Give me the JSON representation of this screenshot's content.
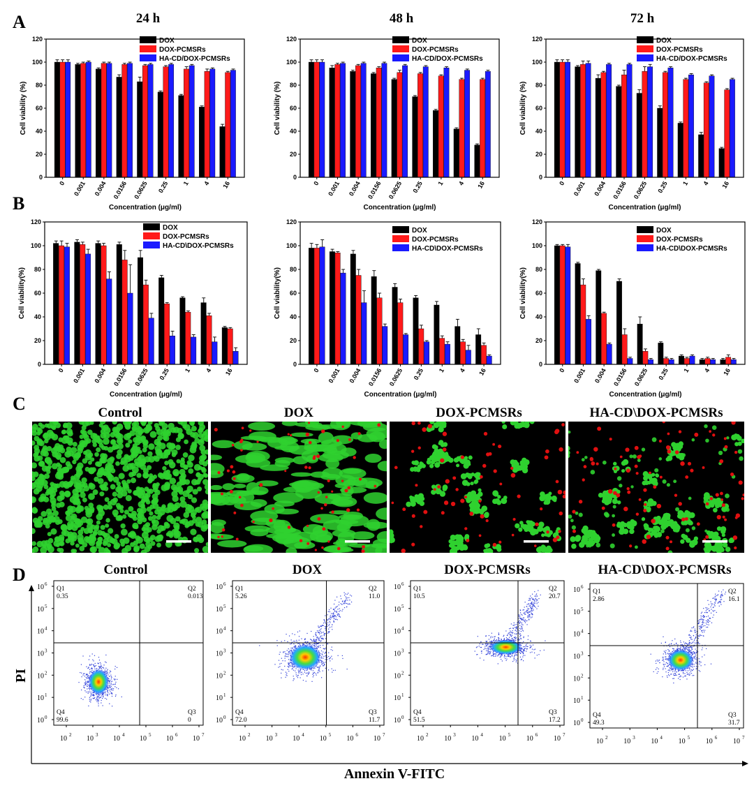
{
  "colors": {
    "DOX": "#000000",
    "DOX-PCMSRs": "#ff1a1a",
    "HA-CD/DOX-PCMSRs": "#1a1aff",
    "cell_green": "#2fd12f",
    "cell_red": "#e01010"
  },
  "panels": {
    "A": {
      "letter": "A",
      "times": [
        "24 h",
        "48 h",
        "72 h"
      ]
    },
    "B": {
      "letter": "B"
    },
    "C": {
      "letter": "C",
      "titles": [
        "Control",
        "DOX",
        "DOX-PCMSRs",
        "HA-CD\\DOX-PCMSRs"
      ]
    },
    "D": {
      "letter": "D",
      "titles": [
        "Control",
        "DOX",
        "DOX-PCMSRs",
        "HA-CD\\DOX-PCMSRs"
      ],
      "ylabel": "PI",
      "xlabel": "Annexin V-FITC"
    }
  },
  "chart_data": [
    {
      "id": "A-24h",
      "type": "bar",
      "title": "24 h",
      "xlabel": "Concentration (μg/ml)",
      "ylabel": "Cell viability (%)",
      "ylim": [
        0,
        120
      ],
      "yticks": [
        0,
        20,
        40,
        60,
        80,
        100,
        120
      ],
      "categories": [
        "0",
        "0.001",
        "0.004",
        "0.0156",
        "0.0625",
        "0.25",
        "1",
        "4",
        "16"
      ],
      "legend": "top-right",
      "series": [
        {
          "name": "DOX",
          "values": [
            100,
            98,
            94,
            87,
            83,
            74,
            71,
            61,
            44
          ],
          "errors": [
            2,
            1,
            1,
            2,
            4,
            1,
            1,
            1,
            2
          ]
        },
        {
          "name": "DOX-PCMSRs",
          "values": [
            100,
            99,
            99,
            98,
            97,
            96,
            94,
            92,
            91
          ],
          "errors": [
            2,
            1,
            1,
            1,
            1,
            1,
            2,
            2,
            1
          ]
        },
        {
          "name": "HA-CD/DOX-PCMSRs",
          "values": [
            100,
            100,
            99,
            99,
            98,
            98,
            97,
            94,
            93
          ],
          "errors": [
            2,
            1,
            1,
            1,
            1,
            1,
            1,
            1,
            1
          ]
        }
      ]
    },
    {
      "id": "A-48h",
      "type": "bar",
      "title": "48 h",
      "xlabel": "Concentration (μg/ml)",
      "ylabel": "Cell viability (%)",
      "ylim": [
        0,
        120
      ],
      "yticks": [
        0,
        20,
        40,
        60,
        80,
        100,
        120
      ],
      "categories": [
        "0",
        "0.001",
        "0.004",
        "0.0156",
        "0.0625",
        "0.25",
        "1",
        "4",
        "16"
      ],
      "legend": "top-right",
      "series": [
        {
          "name": "DOX",
          "values": [
            100,
            95,
            92,
            90,
            85,
            70,
            58,
            42,
            28
          ],
          "errors": [
            2,
            2,
            1,
            1,
            1,
            1,
            1,
            1,
            1
          ]
        },
        {
          "name": "DOX-PCMSRs",
          "values": [
            100,
            98,
            97,
            95,
            91,
            90,
            88,
            85,
            85
          ],
          "errors": [
            2,
            1,
            1,
            1,
            2,
            1,
            1,
            1,
            1
          ]
        },
        {
          "name": "HA-CD/DOX-PCMSRs",
          "values": [
            100,
            99,
            99,
            99,
            97,
            96,
            95,
            93,
            92
          ],
          "errors": [
            2,
            1,
            1,
            1,
            1,
            1,
            1,
            1,
            1
          ]
        }
      ]
    },
    {
      "id": "A-72h",
      "type": "bar",
      "title": "72 h",
      "xlabel": "Concentration (μg/ml)",
      "ylabel": "Cell viability (%)",
      "ylim": [
        0,
        120
      ],
      "yticks": [
        0,
        20,
        40,
        60,
        80,
        100,
        120
      ],
      "categories": [
        "0",
        "0.001",
        "0.004",
        "0.0156",
        "0.0625",
        "0.25",
        "1",
        "4",
        "16"
      ],
      "legend": "top-right",
      "series": [
        {
          "name": "DOX",
          "values": [
            100,
            96,
            86,
            79,
            73,
            60,
            47,
            37,
            25
          ],
          "errors": [
            2,
            1,
            3,
            1,
            3,
            2,
            1,
            2,
            1
          ]
        },
        {
          "name": "DOX-PCMSRs",
          "values": [
            100,
            98,
            91,
            89,
            92,
            91,
            85,
            82,
            76
          ],
          "errors": [
            2,
            3,
            1,
            4,
            4,
            1,
            1,
            1,
            1
          ]
        },
        {
          "name": "HA-CD/DOX-PCMSRs",
          "values": [
            100,
            99,
            98,
            98,
            96,
            95,
            89,
            88,
            85
          ],
          "errors": [
            2,
            2,
            1,
            1,
            2,
            1,
            1,
            1,
            1
          ]
        }
      ]
    },
    {
      "id": "B-1",
      "type": "bar",
      "xlabel": "Concentration (μg/ml)",
      "ylabel": "Cell viability(%)",
      "ylim": [
        0,
        120
      ],
      "yticks": [
        0,
        20,
        40,
        60,
        80,
        100,
        120
      ],
      "categories": [
        "0",
        "0.001",
        "0.004",
        "0.0156",
        "0.0625",
        "0.25",
        "1",
        "4",
        "16"
      ],
      "legend": "top-right",
      "series": [
        {
          "name": "DOX",
          "values": [
            102,
            103,
            102,
            101,
            90,
            73,
            56,
            52,
            31
          ],
          "errors": [
            2,
            2,
            2,
            2,
            6,
            2,
            1,
            4,
            1
          ]
        },
        {
          "name": "DOX-PCMSRs",
          "values": [
            100,
            101,
            100,
            88,
            67,
            51,
            44,
            41,
            30
          ],
          "errors": [
            4,
            2,
            2,
            8,
            4,
            1,
            1,
            2,
            1
          ]
        },
        {
          "name": "HA-CD\\DOX-PCMSRs",
          "values": [
            99,
            93,
            72,
            60,
            39,
            24,
            23,
            19,
            11
          ],
          "errors": [
            3,
            4,
            6,
            24,
            4,
            4,
            2,
            4,
            3
          ]
        }
      ]
    },
    {
      "id": "B-2",
      "type": "bar",
      "xlabel": "Concentration (μg/ml)",
      "ylabel": "Cell viability(%)",
      "ylim": [
        0,
        120
      ],
      "yticks": [
        0,
        20,
        40,
        60,
        80,
        100,
        120
      ],
      "categories": [
        "0",
        "0.001",
        "0.004",
        "0.0156",
        "0.0625",
        "0.25",
        "1",
        "4",
        "16"
      ],
      "legend": "top-right",
      "series": [
        {
          "name": "DOX",
          "values": [
            98,
            95,
            93,
            74,
            65,
            56,
            50,
            32,
            25
          ],
          "errors": [
            4,
            2,
            3,
            5,
            3,
            2,
            3,
            6,
            5
          ]
        },
        {
          "name": "DOX-PCMSRs",
          "values": [
            98,
            94,
            75,
            56,
            52,
            30,
            22,
            19,
            16
          ],
          "errors": [
            3,
            1,
            5,
            4,
            3,
            3,
            2,
            2,
            2
          ]
        },
        {
          "name": "HA-CD\\DOX-PCMSRs",
          "values": [
            99,
            77,
            52,
            32,
            25,
            19,
            17,
            12,
            7
          ],
          "errors": [
            6,
            3,
            10,
            2,
            1,
            1,
            2,
            4,
            1
          ]
        }
      ]
    },
    {
      "id": "B-3",
      "type": "bar",
      "xlabel": "Concentration (μg/ml)",
      "ylabel": "Cell viability(%)",
      "ylim": [
        0,
        120
      ],
      "yticks": [
        0,
        20,
        40,
        60,
        80,
        100,
        120
      ],
      "categories": [
        "0",
        "0.001",
        "0.004",
        "0.0156",
        "0.0625",
        "0.25",
        "1",
        "4",
        "16"
      ],
      "legend": "top-right",
      "series": [
        {
          "name": "DOX",
          "values": [
            100,
            85,
            79,
            70,
            34,
            18,
            7,
            4,
            4
          ],
          "errors": [
            1,
            1,
            1,
            2,
            6,
            1,
            1,
            1,
            1
          ]
        },
        {
          "name": "DOX-PCMSRs",
          "values": [
            100,
            67,
            43,
            25,
            11,
            5,
            5,
            5,
            6
          ],
          "errors": [
            1,
            5,
            1,
            5,
            2,
            1,
            1,
            1,
            2
          ]
        },
        {
          "name": "HA-CD\\DOX-PCMSRs",
          "values": [
            99,
            38,
            17,
            5,
            4,
            4,
            7,
            4,
            4
          ],
          "errors": [
            2,
            3,
            1,
            1,
            1,
            1,
            1,
            1,
            1
          ]
        }
      ]
    }
  ],
  "flow": [
    {
      "title": "Control",
      "Q1": "0.35",
      "Q2": "0.013",
      "Q3": "0",
      "Q4": "99.6"
    },
    {
      "title": "DOX",
      "Q1": "5.26",
      "Q2": "11.0",
      "Q3": "11.7",
      "Q4": "72.0"
    },
    {
      "title": "DOX-PCMSRs",
      "Q1": "10.5",
      "Q2": "20.7",
      "Q3": "17.2",
      "Q4": "51.5"
    },
    {
      "title": "HA-CD\\DOX-PCMSRs",
      "Q1": "2.86",
      "Q2": "16.1",
      "Q3": "31.7",
      "Q4": "49.3"
    }
  ],
  "flow_axes": {
    "yticks": [
      "10^0",
      "10^1",
      "10^2",
      "10^3",
      "10^4",
      "10^5",
      "10^6"
    ],
    "xticks": [
      "10^2",
      "10^3",
      "10^4",
      "10^5",
      "10^6",
      "10^7"
    ]
  }
}
